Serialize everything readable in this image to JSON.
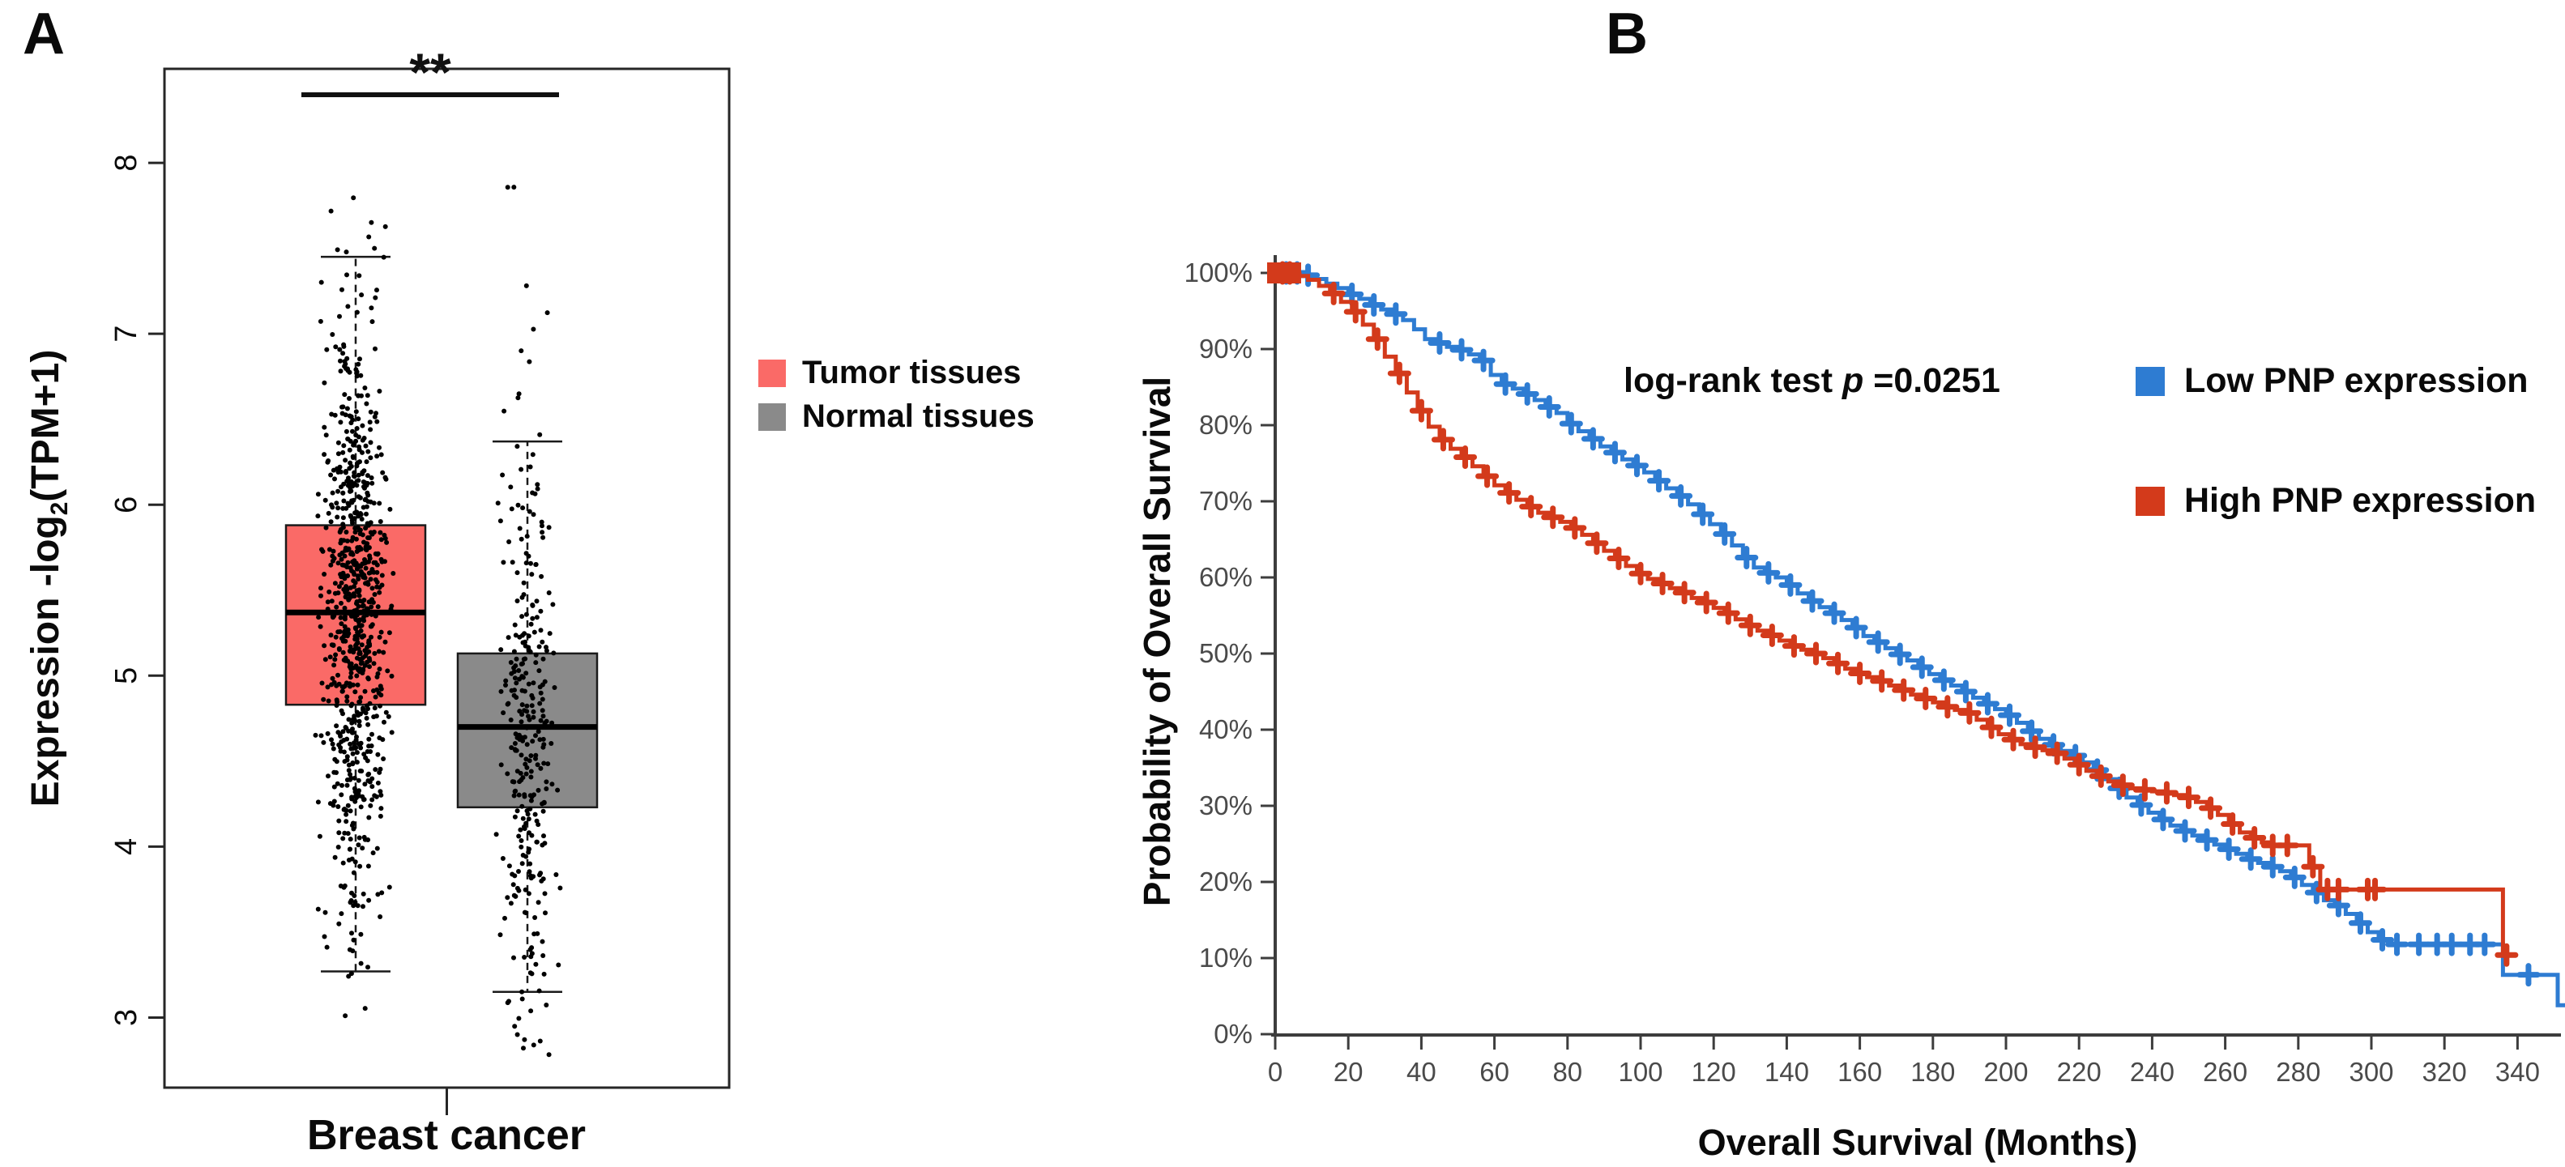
{
  "figure": {
    "panel_a_letter": "A",
    "panel_b_letter": "B"
  },
  "panel_a": {
    "ylabel_main": "Expression -log",
    "ylabel_sub": "2",
    "ylabel_paren": "(TPM+1)",
    "x_category": "Breast cancer",
    "significance": "**"
  },
  "panel_b": {
    "ylabel": "Probability of Overall Survival",
    "xlabel": "Overall Survival (Months)",
    "annotation_prefix": "log-rank test ",
    "annotation_p": "p",
    "annotation_suffix": " =0.0251"
  },
  "chart_data": [
    {
      "type": "box",
      "panel": "A",
      "ylabel": "Expression -log2(TPM+1)",
      "xlabel": "Breast cancer",
      "ylim": [
        2.59,
        8.55
      ],
      "yticks": [
        3,
        4,
        5,
        6,
        7,
        8
      ],
      "significance": "**",
      "grid": false,
      "groups": [
        {
          "name": "Tumor tissues",
          "color": "#FA6A67",
          "q1": 4.83,
          "median": 5.37,
          "q3": 5.88,
          "whisker_low": 3.27,
          "whisker_high": 7.45,
          "points_n": 820,
          "points_mean": 5.38,
          "points_sd": 0.82,
          "points_range": [
            2.87,
            7.93
          ]
        },
        {
          "name": "Normal tissues",
          "color": "#8A8A8A",
          "q1": 4.23,
          "median": 4.7,
          "q3": 5.13,
          "whisker_low": 3.15,
          "whisker_high": 6.37,
          "points_n": 310,
          "points_mean": 4.72,
          "points_sd": 0.8,
          "points_range": [
            2.78,
            7.93
          ]
        }
      ]
    },
    {
      "type": "line",
      "subtype": "kaplan-meier",
      "panel": "B",
      "ylabel": "Probability of Overall Survival",
      "xlabel": "Overall Survival (Months)",
      "annotation": {
        "prefix": "log-rank test ",
        "p_symbol": "p",
        "suffix": " =0.0251"
      },
      "xlim": [
        0,
        353
      ],
      "ylim": [
        0,
        100
      ],
      "xticks": [
        0,
        20,
        40,
        60,
        80,
        100,
        120,
        140,
        160,
        180,
        200,
        220,
        240,
        260,
        280,
        300,
        320,
        340
      ],
      "ytick_labels": [
        "0%",
        "10%",
        "20%",
        "30%",
        "40%",
        "50%",
        "60%",
        "70%",
        "80%",
        "90%",
        "100%"
      ],
      "grid": false,
      "legend_position": "upper-right",
      "series": [
        {
          "name": "Low PNP expression",
          "color": "#2E7CD2",
          "steps": [
            [
              0,
              100
            ],
            [
              8,
              99.7
            ],
            [
              11,
              99.2
            ],
            [
              14,
              98.6
            ],
            [
              17,
              98
            ],
            [
              20,
              97.2
            ],
            [
              23,
              96.6
            ],
            [
              26,
              95.8
            ],
            [
              29,
              95.2
            ],
            [
              32,
              94.6
            ],
            [
              35,
              93.8
            ],
            [
              38,
              92.6
            ],
            [
              41,
              91.3
            ],
            [
              44,
              90.8
            ],
            [
              47,
              90.3
            ],
            [
              50,
              89.9
            ],
            [
              53,
              89.3
            ],
            [
              56,
              88.5
            ],
            [
              59,
              86.6
            ],
            [
              62,
              85.4
            ],
            [
              65,
              84.8
            ],
            [
              68,
              84.1
            ],
            [
              71,
              83.3
            ],
            [
              74,
              82.4
            ],
            [
              77,
              81.6
            ],
            [
              80,
              80.2
            ],
            [
              83,
              79.2
            ],
            [
              86,
              78.2
            ],
            [
              89,
              77.2
            ],
            [
              92,
              76.4
            ],
            [
              95,
              75.5
            ],
            [
              98,
              74.7
            ],
            [
              101,
              73.8
            ],
            [
              104,
              72.7
            ],
            [
              107,
              71.7
            ],
            [
              110,
              70.7
            ],
            [
              113,
              69.6
            ],
            [
              116,
              68.3
            ],
            [
              119,
              67
            ],
            [
              122,
              65.7
            ],
            [
              125,
              64.2
            ],
            [
              128,
              62.6
            ],
            [
              131,
              61.3
            ],
            [
              134,
              60.6
            ],
            [
              137,
              60
            ],
            [
              140,
              59
            ],
            [
              143,
              57.9
            ],
            [
              146,
              56.9
            ],
            [
              149,
              56.1
            ],
            [
              152,
              55.3
            ],
            [
              155,
              54.4
            ],
            [
              158,
              53.4
            ],
            [
              161,
              52.3
            ],
            [
              164,
              51.5
            ],
            [
              167,
              50.7
            ],
            [
              170,
              49.9
            ],
            [
              173,
              49.1
            ],
            [
              176,
              48.2
            ],
            [
              179,
              47.3
            ],
            [
              182,
              46.5
            ],
            [
              185,
              45.8
            ],
            [
              188,
              45
            ],
            [
              191,
              44.2
            ],
            [
              194,
              43.4
            ],
            [
              197,
              42.7
            ],
            [
              200,
              41.9
            ],
            [
              203,
              40.9
            ],
            [
              206,
              39.8
            ],
            [
              209,
              38.8
            ],
            [
              212,
              38
            ],
            [
              215,
              37.2
            ],
            [
              218,
              36.6
            ],
            [
              221,
              35.7
            ],
            [
              224,
              34.7
            ],
            [
              227,
              33.5
            ],
            [
              230,
              32.3
            ],
            [
              233,
              31.1
            ],
            [
              236,
              30.1
            ],
            [
              239,
              29.1
            ],
            [
              242,
              28.2
            ],
            [
              245,
              27.4
            ],
            [
              248,
              26.7
            ],
            [
              251,
              26.1
            ],
            [
              254,
              25.5
            ],
            [
              257,
              24.9
            ],
            [
              260,
              24.3
            ],
            [
              263,
              23.7
            ],
            [
              266,
              23
            ],
            [
              269,
              22.5
            ],
            [
              272,
              22
            ],
            [
              275,
              21.4
            ],
            [
              278,
              20.6
            ],
            [
              281,
              19.6
            ],
            [
              284,
              18.6
            ],
            [
              287,
              17.6
            ],
            [
              290,
              16.9
            ],
            [
              293,
              15.8
            ],
            [
              296,
              14.6
            ],
            [
              299,
              13.4
            ],
            [
              302,
              12.4
            ],
            [
              305,
              11.8
            ],
            [
              335,
              11.8
            ],
            [
              336,
              7.8
            ],
            [
              350,
              7.8
            ],
            [
              351,
              3.8
            ],
            [
              353,
              3.8
            ]
          ],
          "censors": [
            3,
            6,
            9,
            21,
            27,
            33,
            45,
            51,
            57,
            63,
            69,
            75,
            81,
            87,
            93,
            99,
            105,
            111,
            117,
            123,
            129,
            135,
            141,
            147,
            153,
            159,
            165,
            171,
            177,
            183,
            189,
            195,
            201,
            207,
            213,
            219,
            225,
            231,
            237,
            243,
            249,
            255,
            261,
            267,
            273,
            279,
            285,
            291,
            297,
            303,
            307,
            313,
            318,
            322,
            327,
            331,
            343
          ]
        },
        {
          "name": "High PNP expression",
          "color": "#D33A1B",
          "steps": [
            [
              0,
              100
            ],
            [
              6,
              99.6
            ],
            [
              9,
              99.1
            ],
            [
              12,
              98.3
            ],
            [
              15,
              97.3
            ],
            [
              18,
              96.2
            ],
            [
              21,
              94.9
            ],
            [
              24,
              93.2
            ],
            [
              27,
              91.3
            ],
            [
              30,
              89
            ],
            [
              33,
              86.8
            ],
            [
              36,
              84.3
            ],
            [
              39,
              81.9
            ],
            [
              42,
              79.8
            ],
            [
              45,
              78.1
            ],
            [
              48,
              76.9
            ],
            [
              51,
              75.8
            ],
            [
              54,
              74.6
            ],
            [
              57,
              73.3
            ],
            [
              60,
              72.1
            ],
            [
              63,
              71.1
            ],
            [
              66,
              70.2
            ],
            [
              69,
              69.3
            ],
            [
              72,
              68.5
            ],
            [
              75,
              67.9
            ],
            [
              78,
              67.3
            ],
            [
              81,
              66.5
            ],
            [
              84,
              65.6
            ],
            [
              87,
              64.5
            ],
            [
              90,
              63.5
            ],
            [
              93,
              62.5
            ],
            [
              96,
              61.5
            ],
            [
              99,
              60.5
            ],
            [
              102,
              59.8
            ],
            [
              105,
              59.2
            ],
            [
              108,
              58.6
            ],
            [
              111,
              58
            ],
            [
              114,
              57.3
            ],
            [
              117,
              56.7
            ],
            [
              120,
              56
            ],
            [
              123,
              55.3
            ],
            [
              126,
              54.5
            ],
            [
              129,
              53.7
            ],
            [
              132,
              53
            ],
            [
              135,
              52.4
            ],
            [
              138,
              51.7
            ],
            [
              141,
              51
            ],
            [
              144,
              50.5
            ],
            [
              147,
              50
            ],
            [
              150,
              49.4
            ],
            [
              153,
              48.7
            ],
            [
              156,
              48
            ],
            [
              159,
              47.4
            ],
            [
              162,
              46.9
            ],
            [
              165,
              46.4
            ],
            [
              168,
              45.8
            ],
            [
              171,
              45.2
            ],
            [
              174,
              44.6
            ],
            [
              177,
              44.1
            ],
            [
              180,
              43.6
            ],
            [
              183,
              43
            ],
            [
              186,
              42.6
            ],
            [
              189,
              42.2
            ],
            [
              192,
              41.3
            ],
            [
              195,
              40.3
            ],
            [
              198,
              39.4
            ],
            [
              201,
              38.7
            ],
            [
              204,
              38.1
            ],
            [
              207,
              37.7
            ],
            [
              210,
              37.3
            ],
            [
              213,
              36.9
            ],
            [
              216,
              36.2
            ],
            [
              219,
              35.4
            ],
            [
              222,
              34.6
            ],
            [
              225,
              33.9
            ],
            [
              228,
              33.2
            ],
            [
              231,
              32.7
            ],
            [
              234,
              32.3
            ],
            [
              237,
              32.1
            ],
            [
              240,
              31.9
            ],
            [
              243,
              31.7
            ],
            [
              246,
              31.4
            ],
            [
              249,
              31.1
            ],
            [
              252,
              30.5
            ],
            [
              255,
              29.7
            ],
            [
              258,
              28.8
            ],
            [
              261,
              27.6
            ],
            [
              264,
              26.5
            ],
            [
              267,
              25.8
            ],
            [
              270,
              25.2
            ],
            [
              272,
              24.8
            ],
            [
              281,
              24.8
            ],
            [
              283,
              22
            ],
            [
              286,
              19
            ],
            [
              334,
              19
            ],
            [
              336,
              10.4
            ],
            [
              339,
              10.4
            ]
          ],
          "censors": [
            2,
            4,
            16,
            22,
            28,
            34,
            40,
            46,
            52,
            58,
            64,
            70,
            76,
            82,
            88,
            94,
            100,
            106,
            112,
            118,
            124,
            130,
            136,
            142,
            148,
            154,
            160,
            166,
            172,
            178,
            184,
            190,
            196,
            202,
            208,
            214,
            220,
            226,
            232,
            238,
            244,
            250,
            256,
            262,
            268,
            273,
            277,
            284,
            288,
            291,
            299,
            301,
            337
          ]
        }
      ]
    }
  ]
}
